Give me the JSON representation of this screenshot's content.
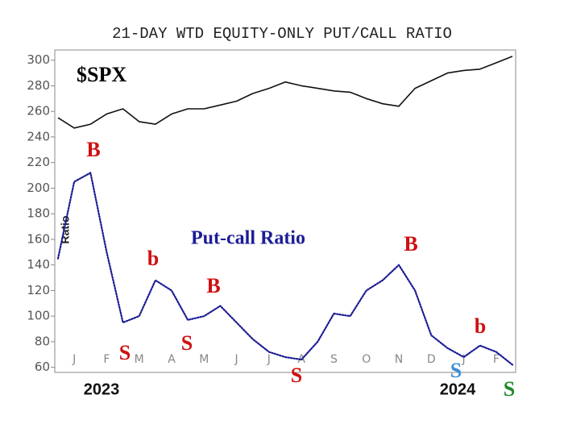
{
  "chart_data": {
    "type": "line",
    "title": "21-DAY WTD EQUITY-ONLY PUT/CALL RATIO",
    "y_label": "Ratio",
    "categories": [
      null,
      "J",
      null,
      "F",
      null,
      "M",
      null,
      "A",
      null,
      "M",
      null,
      "J",
      null,
      "J",
      null,
      "A",
      null,
      "S",
      null,
      "O",
      null,
      "N",
      null,
      "D",
      null,
      "J",
      null,
      "F",
      null
    ],
    "year_labels": [
      "2023",
      "2024"
    ],
    "series": [
      {
        "name": "$SPX",
        "color": "#111111",
        "values": [
          255,
          247,
          250,
          258,
          262,
          252,
          250,
          258,
          262,
          262,
          265,
          268,
          274,
          278,
          283,
          280,
          278,
          276,
          275,
          270,
          266,
          264,
          278,
          284,
          290,
          292,
          293,
          298,
          303
        ]
      },
      {
        "name": "Put-call Ratio",
        "color": "#1c1c96",
        "values": [
          145,
          205,
          212,
          150,
          95,
          100,
          128,
          120,
          97,
          100,
          108,
          95,
          82,
          72,
          68,
          66,
          80,
          102,
          100,
          120,
          128,
          140,
          120,
          85,
          75,
          68,
          77,
          72,
          62
        ]
      }
    ],
    "signals": [
      {
        "text": "B",
        "color": "#d01010"
      },
      {
        "text": "S",
        "color": "#d01010"
      },
      {
        "text": "b",
        "color": "#d01010"
      },
      {
        "text": "S",
        "color": "#d01010"
      },
      {
        "text": "B",
        "color": "#d01010"
      },
      {
        "text": "S",
        "color": "#d01010"
      },
      {
        "text": "B",
        "color": "#d01010"
      },
      {
        "text": "S",
        "color": "#3a8fd8"
      },
      {
        "text": "b",
        "color": "#d01010"
      },
      {
        "text": "S",
        "color": "#1e8a2a"
      }
    ],
    "ylim": [
      56,
      308
    ],
    "yticks": [
      60,
      80,
      100,
      120,
      140,
      160,
      180,
      200,
      220,
      240,
      260,
      280,
      300
    ]
  }
}
